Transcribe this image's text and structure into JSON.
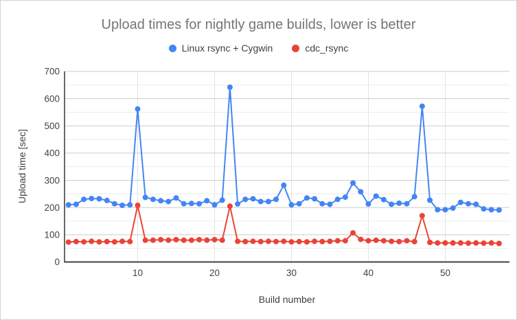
{
  "chart_data": {
    "type": "line",
    "title": "Upload times for nightly game builds, lower is better",
    "xlabel": "Build number",
    "ylabel": "Upload time [sec]",
    "legend_position": "top",
    "grid": true,
    "x": [
      1,
      2,
      3,
      4,
      5,
      6,
      7,
      8,
      9,
      10,
      11,
      12,
      13,
      14,
      15,
      16,
      17,
      18,
      19,
      20,
      21,
      22,
      23,
      24,
      25,
      26,
      27,
      28,
      29,
      30,
      31,
      32,
      33,
      34,
      35,
      36,
      37,
      38,
      39,
      40,
      41,
      42,
      43,
      44,
      45,
      46,
      47,
      48,
      49,
      50,
      51,
      52,
      53,
      54,
      55,
      56,
      57
    ],
    "xaxis": {
      "ticks": [
        10,
        20,
        30,
        40,
        50
      ]
    },
    "yaxis": {
      "min": 0,
      "max": 700,
      "major_step": 100,
      "minor_step": 50
    },
    "series": [
      {
        "name": "Linux rsync + Cygwin",
        "color": "#4285f4",
        "values": [
          210,
          212,
          230,
          233,
          232,
          226,
          214,
          208,
          210,
          562,
          237,
          230,
          225,
          222,
          235,
          214,
          215,
          214,
          225,
          210,
          227,
          642,
          213,
          230,
          232,
          222,
          222,
          230,
          282,
          210,
          214,
          235,
          232,
          214,
          212,
          230,
          238,
          290,
          258,
          213,
          242,
          229,
          212,
          216,
          214,
          240,
          572,
          227,
          192,
          192,
          198,
          219,
          214,
          212,
          195,
          192,
          191
        ]
      },
      {
        "name": "cdc_rsync",
        "color": "#ea4335",
        "values": [
          73,
          75,
          74,
          76,
          74,
          75,
          74,
          76,
          75,
          208,
          80,
          80,
          82,
          80,
          82,
          80,
          80,
          82,
          80,
          82,
          80,
          205,
          76,
          75,
          76,
          75,
          76,
          75,
          76,
          74,
          75,
          74,
          76,
          75,
          76,
          78,
          78,
          107,
          83,
          78,
          80,
          78,
          76,
          75,
          78,
          75,
          170,
          72,
          70,
          70,
          70,
          70,
          69,
          70,
          69,
          70,
          68
        ]
      }
    ]
  },
  "style": {
    "background": "#ffffff",
    "border_color": "#d2d2d2",
    "title_color": "#757575",
    "major_grid_color": "#cccccc",
    "minor_grid_color": "#ececec",
    "vertical_grid_color": "#e3e3e3",
    "axis_line_color": "#424242",
    "tick_label_color": "#424242"
  }
}
